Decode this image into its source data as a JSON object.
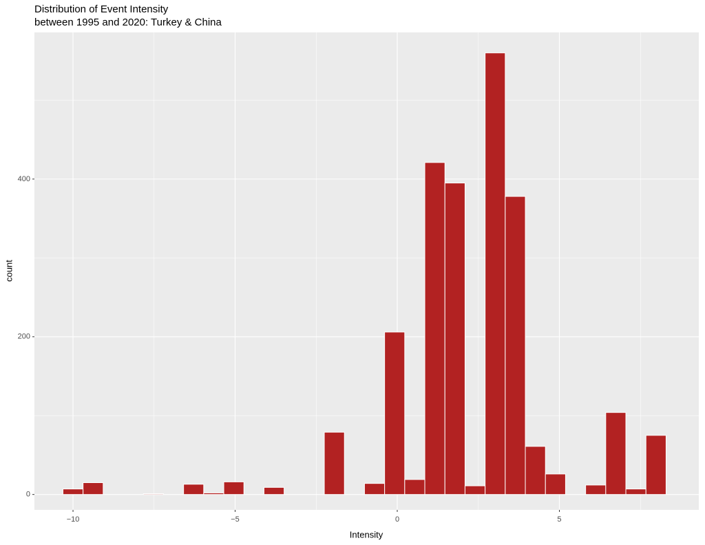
{
  "chart_data": {
    "type": "histogram",
    "title": "Distribution of Event Intensity",
    "subtitle": "between 1995 and 2020: Turkey & China",
    "x_label": "Intensity",
    "y_label": "count",
    "bins": [
      -10.31,
      -9.69,
      -9.07,
      -8.45,
      -7.83,
      -7.21,
      -6.59,
      -5.97,
      -5.35,
      -4.73,
      -4.11,
      -3.49,
      -2.87,
      -2.25,
      -1.63,
      -1.01,
      -0.39,
      0.23,
      0.85,
      1.47,
      2.09,
      2.71,
      3.33,
      3.95,
      4.57,
      5.19,
      5.81,
      6.43,
      7.05,
      7.67,
      8.29
    ],
    "values": [
      7,
      15,
      0,
      0,
      1,
      0,
      13,
      2,
      16,
      0,
      9,
      0,
      0,
      79,
      0,
      14,
      206,
      19,
      421,
      395,
      11,
      560,
      378,
      61,
      26,
      0,
      12,
      104,
      7,
      75
    ],
    "color": "#b22222",
    "xlim": [
      -11.19,
      9.3
    ],
    "xticks": [
      {
        "value": -10,
        "label": "−10"
      },
      {
        "value": -5,
        "label": "−5"
      },
      0,
      5
    ],
    "ylim": [
      -19.5,
      586
    ],
    "yticks": [
      0,
      200,
      400
    ],
    "grid": true
  }
}
